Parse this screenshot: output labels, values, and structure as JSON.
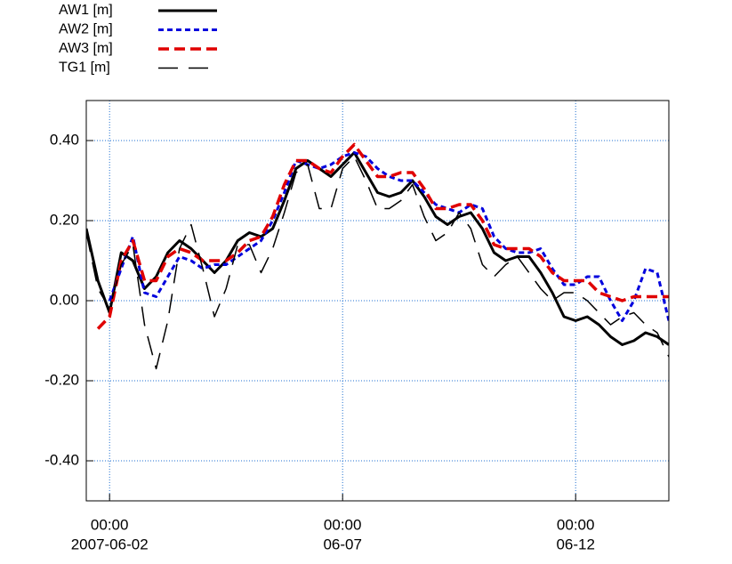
{
  "chart_data": {
    "type": "line",
    "x": [
      "2007-06-01 12:00",
      "2007-06-01 18:00",
      "2007-06-02 00:00",
      "2007-06-02 06:00",
      "2007-06-02 12:00",
      "2007-06-02 18:00",
      "2007-06-03 00:00",
      "2007-06-03 06:00",
      "2007-06-03 12:00",
      "2007-06-03 18:00",
      "2007-06-04 00:00",
      "2007-06-04 06:00",
      "2007-06-04 12:00",
      "2007-06-04 18:00",
      "2007-06-05 00:00",
      "2007-06-05 06:00",
      "2007-06-05 12:00",
      "2007-06-05 18:00",
      "2007-06-06 00:00",
      "2007-06-06 06:00",
      "2007-06-06 12:00",
      "2007-06-06 18:00",
      "2007-06-07 00:00",
      "2007-06-07 06:00",
      "2007-06-07 12:00",
      "2007-06-07 18:00",
      "2007-06-08 00:00",
      "2007-06-08 06:00",
      "2007-06-08 12:00",
      "2007-06-08 18:00",
      "2007-06-09 00:00",
      "2007-06-09 06:00",
      "2007-06-09 12:00",
      "2007-06-09 18:00",
      "2007-06-10 00:00",
      "2007-06-10 06:00",
      "2007-06-10 12:00",
      "2007-06-10 18:00",
      "2007-06-11 00:00",
      "2007-06-11 06:00",
      "2007-06-11 12:00",
      "2007-06-11 18:00",
      "2007-06-12 00:00",
      "2007-06-12 06:00",
      "2007-06-12 12:00",
      "2007-06-12 18:00",
      "2007-06-13 00:00",
      "2007-06-13 06:00",
      "2007-06-13 12:00",
      "2007-06-13 18:00",
      "2007-06-14 00:00"
    ],
    "series": [
      {
        "name": "AW1 [m]",
        "color": "#000000",
        "dash": "solid",
        "width": 3,
        "values": [
          0.18,
          0.05,
          -0.03,
          0.12,
          0.1,
          0.03,
          0.06,
          0.12,
          0.15,
          0.13,
          0.1,
          0.07,
          0.1,
          0.15,
          0.17,
          0.16,
          0.18,
          0.25,
          0.33,
          0.35,
          0.33,
          0.31,
          0.34,
          0.37,
          0.32,
          0.27,
          0.26,
          0.27,
          0.3,
          0.26,
          0.21,
          0.19,
          0.21,
          0.22,
          0.18,
          0.12,
          0.1,
          0.11,
          0.11,
          0.07,
          0.02,
          -0.04,
          -0.05,
          -0.04,
          -0.06,
          -0.09,
          -0.11,
          -0.1,
          -0.08,
          -0.09,
          -0.11
        ]
      },
      {
        "name": "AW2 [m]",
        "color": "#0000dd",
        "dash": "dotted",
        "width": 3,
        "values": [
          null,
          null,
          0.0,
          0.08,
          0.16,
          0.02,
          0.01,
          0.06,
          0.11,
          0.1,
          0.08,
          0.09,
          0.09,
          0.11,
          0.13,
          0.15,
          0.2,
          0.27,
          0.35,
          0.34,
          0.33,
          0.34,
          0.36,
          0.37,
          0.36,
          0.33,
          0.31,
          0.3,
          0.3,
          0.27,
          0.24,
          0.23,
          0.22,
          0.24,
          0.23,
          0.16,
          0.13,
          0.12,
          0.12,
          0.13,
          0.08,
          0.04,
          0.04,
          0.06,
          0.06,
          0.0,
          -0.05,
          0.0,
          0.08,
          0.07,
          -0.05
        ]
      },
      {
        "name": "AW3 [m]",
        "color": "#e00000",
        "dash": "dashed",
        "width": 3.5,
        "values": [
          null,
          -0.07,
          -0.04,
          0.1,
          0.15,
          0.05,
          0.05,
          0.11,
          0.13,
          0.12,
          0.1,
          0.1,
          0.1,
          0.12,
          0.15,
          0.16,
          0.21,
          0.29,
          0.35,
          0.35,
          0.33,
          0.32,
          0.36,
          0.39,
          0.35,
          0.31,
          0.31,
          0.32,
          0.32,
          0.28,
          0.23,
          0.23,
          0.24,
          0.24,
          0.2,
          0.14,
          0.13,
          0.13,
          0.13,
          0.11,
          0.07,
          0.05,
          0.05,
          0.05,
          0.02,
          0.01,
          0.0,
          0.01,
          0.01,
          0.01,
          0.01
        ]
      },
      {
        "name": "TG1  [m]",
        "color": "#000000",
        "dash": "longdash",
        "width": 1.5,
        "values": [
          0.17,
          0.03,
          -0.02,
          0.09,
          0.14,
          -0.06,
          -0.17,
          -0.05,
          0.13,
          0.19,
          0.08,
          -0.04,
          0.03,
          0.14,
          0.14,
          0.07,
          0.13,
          0.22,
          0.32,
          0.34,
          0.23,
          0.23,
          0.33,
          0.36,
          0.3,
          0.23,
          0.23,
          0.25,
          0.29,
          0.21,
          0.15,
          0.17,
          0.22,
          0.18,
          0.09,
          0.06,
          0.09,
          0.11,
          0.07,
          0.03,
          0.0,
          0.02,
          0.02,
          0.0,
          -0.03,
          -0.06,
          -0.04,
          -0.03,
          -0.06,
          -0.08,
          -0.14
        ]
      }
    ],
    "xlim": [
      "2007-06-01 12:00",
      "2007-06-14 00:00"
    ],
    "xticks": [
      {
        "value": "2007-06-02 00:00",
        "label": [
          "00:00",
          "2007-06-02"
        ]
      },
      {
        "value": "2007-06-07 00:00",
        "label": [
          "00:00",
          "06-07"
        ]
      },
      {
        "value": "2007-06-12 00:00",
        "label": [
          "00:00",
          "06-12"
        ]
      }
    ],
    "ylim": [
      -0.5,
      0.5
    ],
    "yticks": [
      {
        "value": 0.4,
        "label": "0.40"
      },
      {
        "value": 0.2,
        "label": "0.20"
      },
      {
        "value": 0.0,
        "label": "0.00"
      },
      {
        "value": -0.2,
        "label": "-0.20"
      },
      {
        "value": -0.4,
        "label": "-0.40"
      }
    ],
    "grid": true,
    "grid_color": "#1f6fd0",
    "legend": "top-left"
  }
}
